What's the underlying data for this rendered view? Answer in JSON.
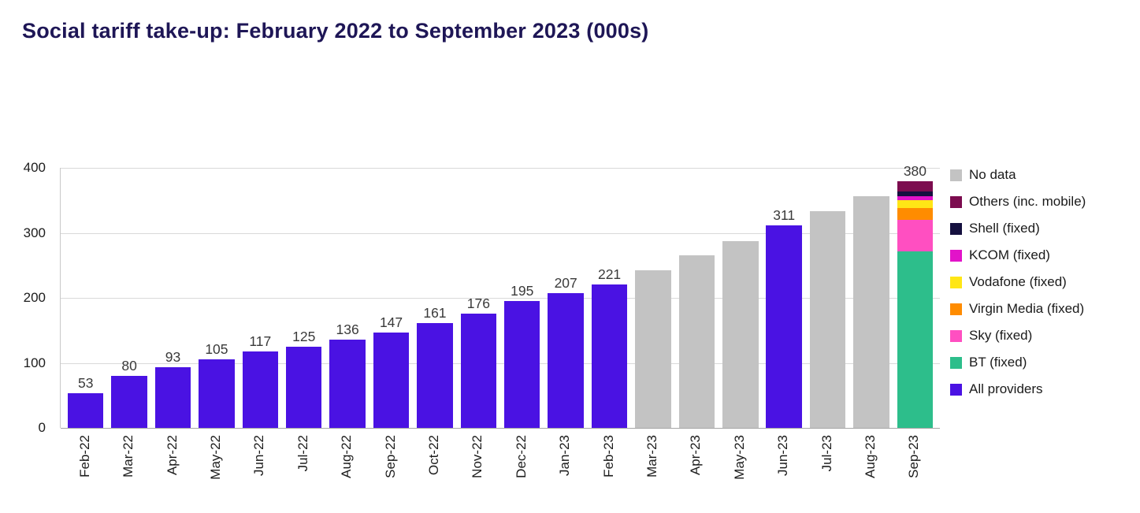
{
  "chart_data": {
    "type": "bar",
    "title": "Social tariff take-up: February 2022 to September 2023 (000s)",
    "xlabel": "",
    "ylabel": "",
    "ylim": [
      0,
      400
    ],
    "yticks": [
      0,
      100,
      200,
      300,
      400
    ],
    "grid": "horizontal",
    "legend_position": "right",
    "categories": [
      "Feb-22",
      "Mar-22",
      "Apr-22",
      "May-22",
      "Jun-22",
      "Jul-22",
      "Aug-22",
      "Sep-22",
      "Oct-22",
      "Nov-22",
      "Dec-22",
      "Jan-23",
      "Feb-23",
      "Mar-23",
      "Apr-23",
      "May-23",
      "Jun-23",
      "Jul-23",
      "Aug-23",
      "Sep-23"
    ],
    "series_colors": {
      "All providers": "#4a12e3",
      "No data": "#c3c3c3",
      "BT (fixed)": "#2dbe8b",
      "Sky (fixed)": "#ff4fc1",
      "Virgin Media (fixed)": "#ff8c00",
      "Vodafone (fixed)": "#ffe616",
      "KCOM (fixed)": "#e213c9",
      "Shell (fixed)": "#15103f",
      "Others (inc. mobile)": "#7c0c4f"
    },
    "legend": [
      "No data",
      "Others (inc. mobile)",
      "Shell (fixed)",
      "KCOM (fixed)",
      "Vodafone (fixed)",
      "Virgin Media (fixed)",
      "Sky (fixed)",
      "BT (fixed)",
      "All providers"
    ],
    "bars": [
      {
        "month": "Feb-22",
        "series": "All providers",
        "value": 53,
        "label": "53"
      },
      {
        "month": "Mar-22",
        "series": "All providers",
        "value": 80,
        "label": "80"
      },
      {
        "month": "Apr-22",
        "series": "All providers",
        "value": 93,
        "label": "93"
      },
      {
        "month": "May-22",
        "series": "All providers",
        "value": 105,
        "label": "105"
      },
      {
        "month": "Jun-22",
        "series": "All providers",
        "value": 117,
        "label": "117"
      },
      {
        "month": "Jul-22",
        "series": "All providers",
        "value": 125,
        "label": "125"
      },
      {
        "month": "Aug-22",
        "series": "All providers",
        "value": 136,
        "label": "136"
      },
      {
        "month": "Sep-22",
        "series": "All providers",
        "value": 147,
        "label": "147"
      },
      {
        "month": "Oct-22",
        "series": "All providers",
        "value": 161,
        "label": "161"
      },
      {
        "month": "Nov-22",
        "series": "All providers",
        "value": 176,
        "label": "176"
      },
      {
        "month": "Dec-22",
        "series": "All providers",
        "value": 195,
        "label": "195"
      },
      {
        "month": "Jan-23",
        "series": "All providers",
        "value": 207,
        "label": "207"
      },
      {
        "month": "Feb-23",
        "series": "All providers",
        "value": 221,
        "label": "221"
      },
      {
        "month": "Mar-23",
        "series": "No data",
        "value": 243
      },
      {
        "month": "Apr-23",
        "series": "No data",
        "value": 265
      },
      {
        "month": "May-23",
        "series": "No data",
        "value": 287
      },
      {
        "month": "Jun-23",
        "series": "All providers",
        "value": 311,
        "label": "311"
      },
      {
        "month": "Jul-23",
        "series": "No data",
        "value": 333
      },
      {
        "month": "Aug-23",
        "series": "No data",
        "value": 356
      },
      {
        "month": "Sep-23",
        "label": "380",
        "stack": [
          {
            "series": "BT (fixed)",
            "value": 272
          },
          {
            "series": "Sky (fixed)",
            "value": 48
          },
          {
            "series": "Virgin Media (fixed)",
            "value": 18
          },
          {
            "series": "Vodafone (fixed)",
            "value": 12
          },
          {
            "series": "KCOM (fixed)",
            "value": 6
          },
          {
            "series": "Shell (fixed)",
            "value": 8
          },
          {
            "series": "Others (inc. mobile)",
            "value": 16
          }
        ]
      }
    ]
  }
}
